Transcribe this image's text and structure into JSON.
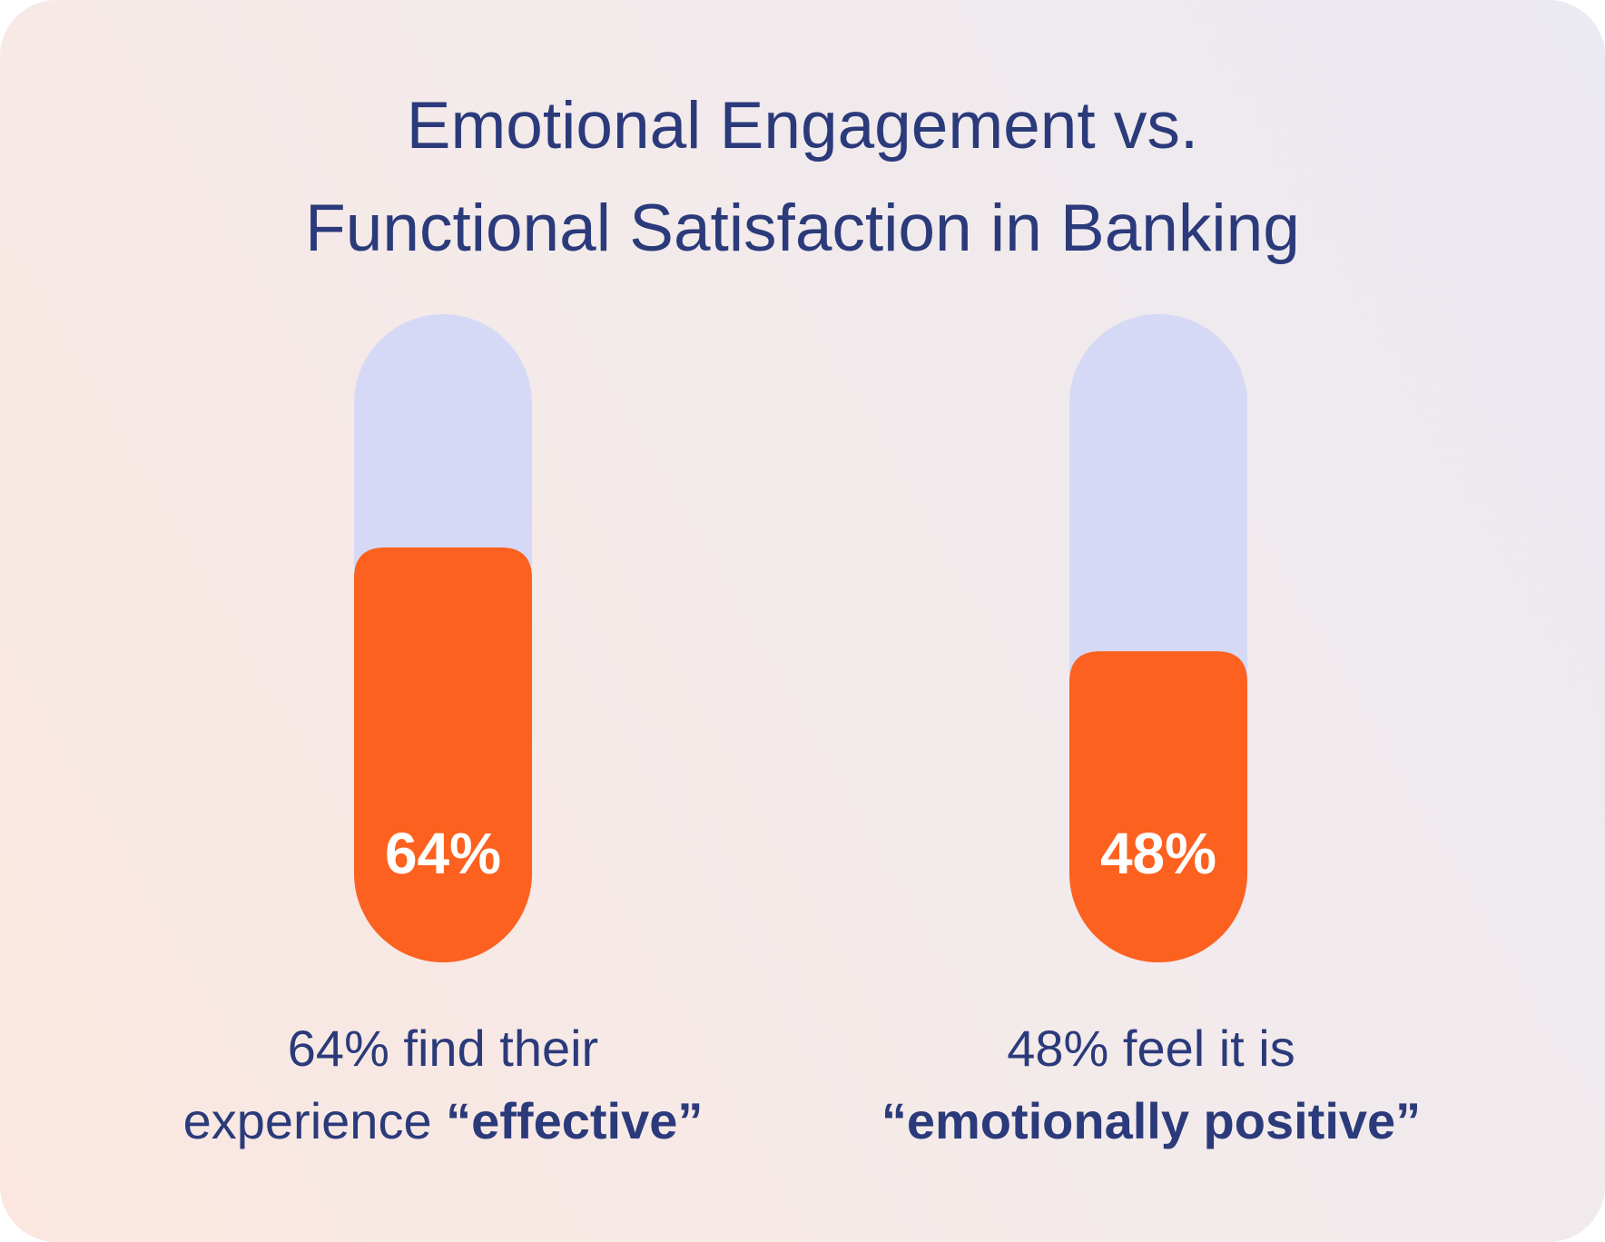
{
  "title_line1": "Emotional Engagement vs.",
  "title_line2": "Functional Satisfaction in Banking",
  "colors": {
    "title": "#2b3a7a",
    "track": "#d6d9f6",
    "fill": "#fc611f",
    "fill_text": "#ffffff"
  },
  "chart_data": {
    "type": "bar",
    "title": "Emotional Engagement vs. Functional Satisfaction in Banking",
    "categories": [
      "effective",
      "emotionally positive"
    ],
    "values": [
      64,
      48
    ],
    "value_labels": [
      "64%",
      "48%"
    ],
    "ylim": [
      0,
      100
    ],
    "grid": false
  },
  "captions": [
    {
      "line1": "64% find their",
      "line2_plain": "experience ",
      "line2_bold": "“effective”"
    },
    {
      "line1": "48% feel it is",
      "line2_plain": "",
      "line2_bold": "“emotionally positive”"
    }
  ]
}
